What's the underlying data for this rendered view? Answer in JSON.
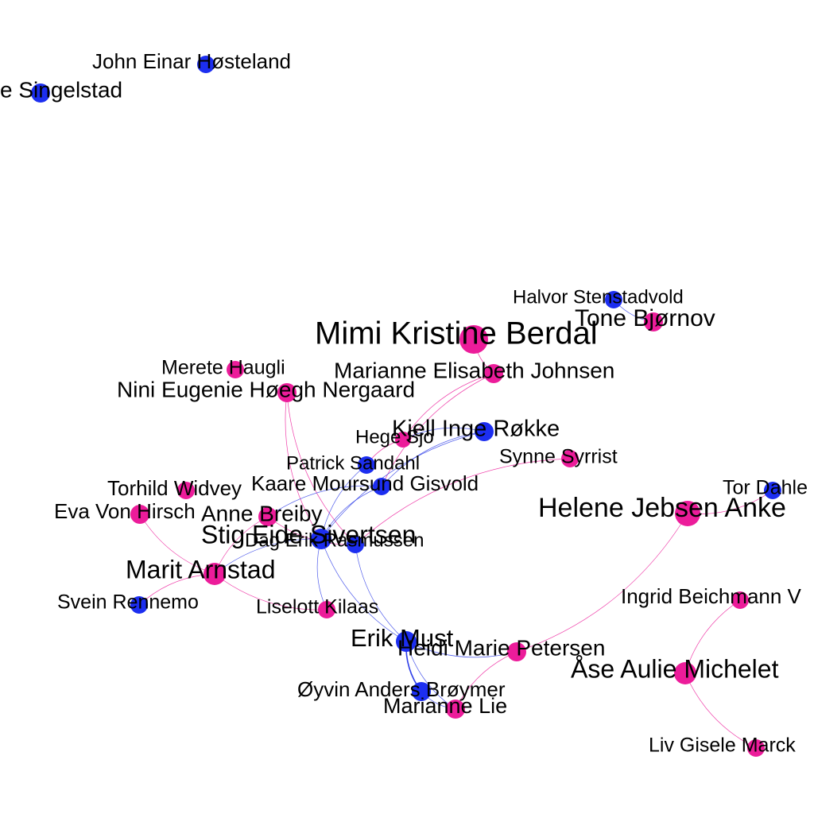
{
  "colors": {
    "female": "#ec1c9a",
    "male": "#1c2ef0",
    "edge_female": "#ec1c9a",
    "edge_male": "#3040e8",
    "label": "#000000"
  },
  "nodes": [
    {
      "id": "singelstad",
      "label": "e Singelstad",
      "gender": "male"
    },
    {
      "id": "hosteland",
      "label": "John Einar Høsteland",
      "gender": "male"
    },
    {
      "id": "stenstadvold",
      "label": "Halvor Stenstadvold",
      "gender": "male"
    },
    {
      "id": "bjornov",
      "label": "Tone Bjørnov",
      "gender": "female"
    },
    {
      "id": "berdal",
      "label": "Mimi Kristine Berdal",
      "gender": "female"
    },
    {
      "id": "haugli",
      "label": "Merete Haugli",
      "gender": "female"
    },
    {
      "id": "johnsen",
      "label": "Marianne Elisabeth Johnsen",
      "gender": "female"
    },
    {
      "id": "nergaard",
      "label": "Nini Eugenie Høegh Nergaard",
      "gender": "female"
    },
    {
      "id": "rokke",
      "label": "Kjell Inge Røkke",
      "gender": "male"
    },
    {
      "id": "sjo",
      "label": "Hege Sjo",
      "gender": "female"
    },
    {
      "id": "syrrist",
      "label": "Synne Syrrist",
      "gender": "female"
    },
    {
      "id": "sandahl",
      "label": "Patrick Sandahl",
      "gender": "male"
    },
    {
      "id": "widvey",
      "label": "Torhild Widvey",
      "gender": "female"
    },
    {
      "id": "gisvold",
      "label": "Kaare Moursund Gisvold",
      "gender": "male"
    },
    {
      "id": "dahle",
      "label": "Tor Dahle",
      "gender": "male"
    },
    {
      "id": "hirsch",
      "label": "Eva Von Hirsch",
      "gender": "female"
    },
    {
      "id": "breiby",
      "label": "Anne Breiby",
      "gender": "female"
    },
    {
      "id": "anker",
      "label": "Helene Jebsen Anke",
      "gender": "female"
    },
    {
      "id": "sivertsen",
      "label": "Stig Eide Sivertsen",
      "gender": "male"
    },
    {
      "id": "rasmussen",
      "label": "Dag Erik Rasmussen",
      "gender": "male"
    },
    {
      "id": "arnstad",
      "label": "Marit Arnstad",
      "gender": "female"
    },
    {
      "id": "beichmann",
      "label": "Ingrid Beichmann V",
      "gender": "female"
    },
    {
      "id": "rennemo",
      "label": "Svein Rennemo",
      "gender": "male"
    },
    {
      "id": "kilaas",
      "label": "Liselott Kilaas",
      "gender": "female"
    },
    {
      "id": "must",
      "label": "Erik Must",
      "gender": "male"
    },
    {
      "id": "petersen",
      "label": "Heidi Marie Petersen",
      "gender": "female"
    },
    {
      "id": "michelet",
      "label": "Åse Aulie Michelet",
      "gender": "female"
    },
    {
      "id": "broymer",
      "label": "Øyvin Anders Brøymer",
      "gender": "male"
    },
    {
      "id": "lie",
      "label": "Marianne Lie",
      "gender": "female"
    },
    {
      "id": "marck",
      "label": "Liv Gisele Marck",
      "gender": "female"
    }
  ],
  "edges": [
    {
      "source": "stenstadvold",
      "target": "bjornov"
    },
    {
      "source": "berdal",
      "target": "johnsen"
    },
    {
      "source": "johnsen",
      "target": "sjo"
    },
    {
      "source": "johnsen",
      "target": "gisvold"
    },
    {
      "source": "nergaard",
      "target": "sivertsen"
    },
    {
      "source": "nergaard",
      "target": "rasmussen"
    },
    {
      "source": "rokke",
      "target": "sjo"
    },
    {
      "source": "rokke",
      "target": "gisvold"
    },
    {
      "source": "rokke",
      "target": "sivertsen"
    },
    {
      "source": "sjo",
      "target": "sandahl"
    },
    {
      "source": "sandahl",
      "target": "sivertsen"
    },
    {
      "source": "gisvold",
      "target": "sivertsen"
    },
    {
      "source": "gisvold",
      "target": "breiby"
    },
    {
      "source": "syrrist",
      "target": "rasmussen"
    },
    {
      "source": "hirsch",
      "target": "arnstad"
    },
    {
      "source": "breiby",
      "target": "rasmussen"
    },
    {
      "source": "breiby",
      "target": "arnstad"
    },
    {
      "source": "sivertsen",
      "target": "kilaas"
    },
    {
      "source": "sivertsen",
      "target": "must"
    },
    {
      "source": "sivertsen",
      "target": "arnstad"
    },
    {
      "source": "rasmussen",
      "target": "must"
    },
    {
      "source": "arnstad",
      "target": "rennemo"
    },
    {
      "source": "arnstad",
      "target": "kilaas"
    },
    {
      "source": "must",
      "target": "petersen"
    },
    {
      "source": "must",
      "target": "broymer"
    },
    {
      "source": "must",
      "target": "lie"
    },
    {
      "source": "petersen",
      "target": "anker"
    },
    {
      "source": "petersen",
      "target": "lie"
    },
    {
      "source": "anker",
      "target": "dahle"
    },
    {
      "source": "beichmann",
      "target": "michelet"
    },
    {
      "source": "michelet",
      "target": "marck"
    },
    {
      "source": "broymer",
      "target": "lie"
    }
  ]
}
